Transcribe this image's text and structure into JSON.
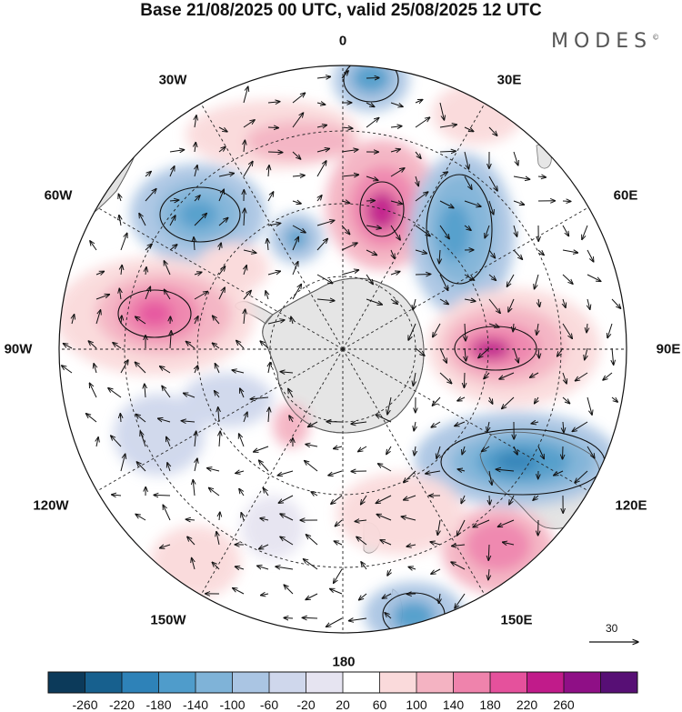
{
  "title": "Base 21/08/2025 00 UTC, valid 25/08/2025 12 UTC",
  "brand": "MODES",
  "brand_mark": "©",
  "longitude_labels": [
    "0",
    "30E",
    "60E",
    "90E",
    "120E",
    "150E",
    "180",
    "150W",
    "120W",
    "90W",
    "60W",
    "30W"
  ],
  "reference_vector": {
    "value": "30",
    "icon": "arrow-right-icon"
  },
  "colorbar": {
    "tick_labels": [
      "-260",
      "-220",
      "-180",
      "-140",
      "-100",
      "-60",
      "-20",
      "20",
      "60",
      "100",
      "140",
      "180",
      "220",
      "260"
    ],
    "colors": [
      "#0c3a5a",
      "#17608e",
      "#2e82b8",
      "#4f9ccb",
      "#7fb3d8",
      "#aac5e3",
      "#cfd7ec",
      "#e6e4f1",
      "#ffffff",
      "#fadadb",
      "#f4b3c2",
      "#ef83ac",
      "#e5519c",
      "#c11b8a",
      "#8f0f86",
      "#570f75"
    ]
  },
  "map": {
    "projection": "south polar stereographic",
    "colors": {
      "land": "#dedede",
      "coast": "#555555",
      "graticule": "#222222"
    },
    "anomalies": [
      {
        "name": "anomaly-0e-low",
        "value": -180
      },
      {
        "name": "anomaly-30e-high",
        "value": 60
      },
      {
        "name": "anomaly-20e-high",
        "value": 180
      },
      {
        "name": "anomaly-45e-low",
        "value": -140
      },
      {
        "name": "anomaly-60w-low",
        "value": -140
      },
      {
        "name": "anomaly-30w-low",
        "value": -140
      },
      {
        "name": "anomaly-20w-high",
        "value": 100
      },
      {
        "name": "anomaly-80w-high",
        "value": 180
      },
      {
        "name": "anomaly-90e-high",
        "value": 220
      },
      {
        "name": "anomaly-110e-low",
        "value": -180
      },
      {
        "name": "anomaly-140e-high",
        "value": 140
      },
      {
        "name": "anomaly-165e-low",
        "value": -140
      },
      {
        "name": "anomaly-110w-low",
        "value": -60
      },
      {
        "name": "anomaly-150w-high",
        "value": 60
      },
      {
        "name": "anomaly-160e-high",
        "value": 60
      }
    ]
  }
}
